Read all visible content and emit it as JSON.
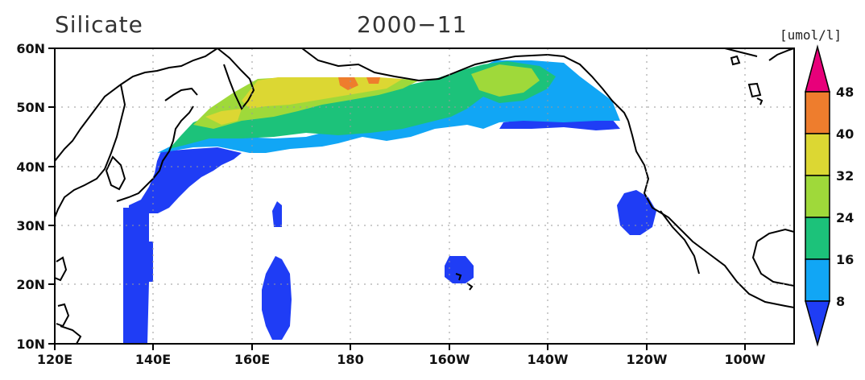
{
  "map": {
    "variable_title": "Silicate",
    "date_title": "2000−11",
    "units": "[umol/l]",
    "lat_labels": [
      "60N",
      "50N",
      "40N",
      "30N",
      "20N",
      "10N"
    ],
    "lon_labels": [
      "120E",
      "140E",
      "160E",
      "180",
      "160W",
      "140W",
      "120W",
      "100W"
    ],
    "colorbar": {
      "labels": [
        "48",
        "40",
        "32",
        "24",
        "16",
        "8"
      ],
      "colors": [
        "#e8007a",
        "#ee7d2d",
        "#dcd733",
        "#9fd93a",
        "#1cc27a",
        "#11a6f5",
        "#1f3df5"
      ]
    },
    "palette": {
      "over48": "#e8007a",
      "c40_48": "#ee7d2d",
      "c32_40": "#dcd733",
      "c24_32": "#9fd93a",
      "c16_24": "#1cc27a",
      "c8_16": "#11a6f5",
      "under8": "#1f3df5"
    }
  }
}
